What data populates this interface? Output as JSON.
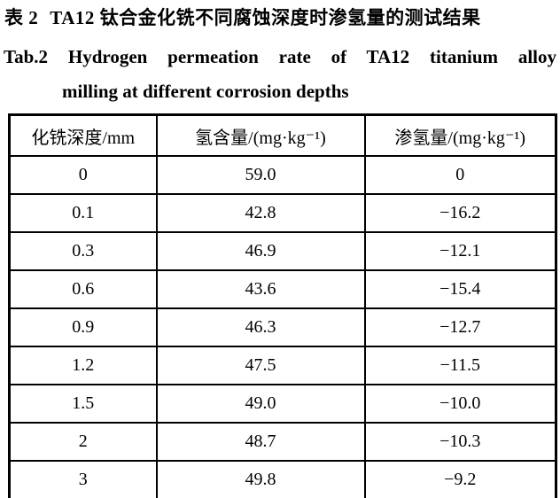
{
  "caption": {
    "cn_label": "表 2",
    "cn_text": "TA12 钛合金化铣不同腐蚀深度时渗氢量的测试结果",
    "en_label": "Tab.2",
    "en_line1": "Hydrogen permeation rate of TA12 titanium alloy",
    "en_line2": "milling at different corrosion depths"
  },
  "table": {
    "headers": [
      "化铣深度/mm",
      "氢含量/(mg·kg⁻¹)",
      "渗氢量/(mg·kg⁻¹)"
    ],
    "rows": [
      [
        "0",
        "59.0",
        "0"
      ],
      [
        "0.1",
        "42.8",
        "−16.2"
      ],
      [
        "0.3",
        "46.9",
        "−12.1"
      ],
      [
        "0.6",
        "43.6",
        "−15.4"
      ],
      [
        "0.9",
        "46.3",
        "−12.7"
      ],
      [
        "1.2",
        "47.5",
        "−11.5"
      ],
      [
        "1.5",
        "49.0",
        "−10.0"
      ],
      [
        "2",
        "48.7",
        "−10.3"
      ],
      [
        "3",
        "49.8",
        "−9.2"
      ]
    ]
  }
}
